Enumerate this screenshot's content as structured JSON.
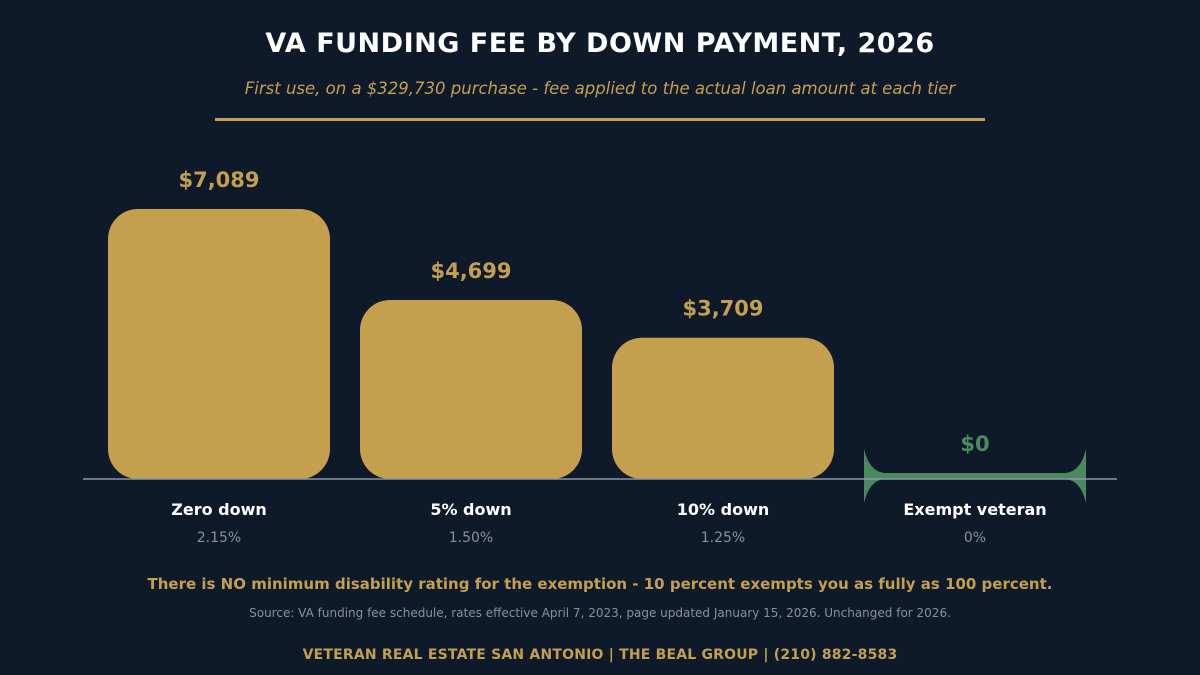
{
  "title": "VA FUNDING FEE BY DOWN PAYMENT, 2026",
  "subtitle": "First use, on a $329,730 purchase - fee applied to the actual loan amount at each tier",
  "note": "There is NO minimum disability rating for the exemption - 10 percent exempts you as fully as 100 percent.",
  "source": "Source: VA funding fee schedule, rates effective April 7, 2023, page updated January 15, 2026. Unchanged for 2026.",
  "footer": "VETERAN REAL ESTATE SAN ANTONIO  |  THE BEAL GROUP  |  (210) 882-8583",
  "colors": {
    "background": "#0e1a29",
    "bar": "#c49f4e",
    "exempt": "#4a8a5e",
    "baseline": "#8a96a6",
    "category_label": "#ffffff",
    "rate_label": "#8391a3"
  },
  "chart_data": {
    "type": "bar",
    "categories": [
      "Zero down",
      "5% down",
      "10% down",
      "Exempt veteran"
    ],
    "rates": [
      "2.15%",
      "1.50%",
      "1.25%",
      "0%"
    ],
    "values": [
      7089,
      4699,
      3709,
      0
    ],
    "value_labels": [
      "$7,089",
      "$4,699",
      "$3,709",
      "$0"
    ],
    "highlight_color_per_bar": [
      "#c49f4e",
      "#c49f4e",
      "#c49f4e",
      "#4a8a5e"
    ],
    "ylim": [
      0,
      7089
    ],
    "grid": false,
    "legend": "none"
  }
}
